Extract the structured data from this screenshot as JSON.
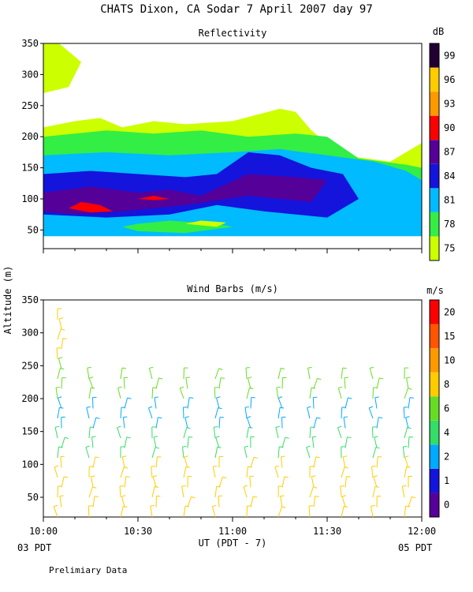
{
  "page": {
    "title": "CHATS Dixon, CA  Sodar   7 April 2007   day  97",
    "footer_note": "Prelimiary Data"
  },
  "chart_data": [
    {
      "type": "heatmap",
      "title": "Reflectivity",
      "ylabel": "",
      "ylim": [
        20,
        350
      ],
      "y_ticks": [
        50,
        100,
        150,
        200,
        250,
        300,
        350
      ],
      "x_ticks": [],
      "colorbar": {
        "unit": "dB",
        "ticks": [
          75,
          78,
          81,
          84,
          87,
          90,
          93,
          96,
          99
        ],
        "colors": [
          "#ccff00",
          "#33ee44",
          "#00bbff",
          "#1414dd",
          "#550099",
          "#ff0000",
          "#ff9900",
          "#ffcc00",
          "#220033"
        ]
      },
      "contour_bands": [
        {
          "level": 75,
          "color": "#ccff00",
          "outline": [
            [
              0,
              350
            ],
            [
              5,
              350
            ],
            [
              12,
              320
            ],
            [
              8,
              280
            ],
            [
              0,
              270
            ],
            [
              -5,
              300
            ]
          ]
        },
        {
          "level": 75,
          "color": "#ccff00",
          "outline": [
            [
              0,
              215
            ],
            [
              10,
              225
            ],
            [
              18,
              230
            ],
            [
              25,
              215
            ],
            [
              35,
              225
            ],
            [
              45,
              220
            ],
            [
              60,
              225
            ],
            [
              75,
              245
            ],
            [
              80,
              240
            ],
            [
              85,
              210
            ],
            [
              95,
              170
            ],
            [
              110,
              160
            ],
            [
              120,
              190
            ],
            [
              120,
              140
            ],
            [
              100,
              130
            ],
            [
              80,
              140
            ],
            [
              0,
              160
            ]
          ]
        },
        {
          "level": 78,
          "color": "#33ee44",
          "outline": [
            [
              0,
              200
            ],
            [
              20,
              210
            ],
            [
              35,
              205
            ],
            [
              50,
              210
            ],
            [
              65,
              200
            ],
            [
              80,
              205
            ],
            [
              90,
              200
            ],
            [
              100,
              165
            ],
            [
              115,
              155
            ],
            [
              120,
              150
            ],
            [
              120,
              130
            ],
            [
              95,
              130
            ],
            [
              80,
              145
            ],
            [
              0,
              165
            ]
          ]
        },
        {
          "level": 81,
          "color": "#00bbff",
          "outline": [
            [
              0,
              170
            ],
            [
              20,
              175
            ],
            [
              40,
              170
            ],
            [
              60,
              175
            ],
            [
              75,
              180
            ],
            [
              90,
              170
            ],
            [
              105,
              160
            ],
            [
              115,
              145
            ],
            [
              120,
              130
            ],
            [
              120,
              40
            ],
            [
              0,
              40
            ]
          ]
        },
        {
          "level": 84,
          "color": "#1414dd",
          "outline": [
            [
              0,
              140
            ],
            [
              15,
              145
            ],
            [
              30,
              140
            ],
            [
              45,
              135
            ],
            [
              55,
              140
            ],
            [
              65,
              175
            ],
            [
              75,
              170
            ],
            [
              85,
              150
            ],
            [
              95,
              140
            ],
            [
              100,
              100
            ],
            [
              90,
              70
            ],
            [
              70,
              80
            ],
            [
              55,
              90
            ],
            [
              40,
              75
            ],
            [
              20,
              70
            ],
            [
              0,
              75
            ]
          ]
        },
        {
          "level": 87,
          "color": "#550099",
          "outline": [
            [
              0,
              110
            ],
            [
              15,
              120
            ],
            [
              30,
              110
            ],
            [
              40,
              115
            ],
            [
              50,
              105
            ],
            [
              65,
              140
            ],
            [
              80,
              135
            ],
            [
              90,
              130
            ],
            [
              85,
              95
            ],
            [
              65,
              105
            ],
            [
              45,
              90
            ],
            [
              25,
              80
            ],
            [
              10,
              75
            ],
            [
              0,
              80
            ]
          ]
        },
        {
          "level": 90,
          "color": "#ff0000",
          "outline": [
            [
              8,
              85
            ],
            [
              12,
              95
            ],
            [
              18,
              90
            ],
            [
              22,
              80
            ],
            [
              15,
              78
            ]
          ]
        },
        {
          "level": 90,
          "color": "#ff0000",
          "outline": [
            [
              30,
              100
            ],
            [
              35,
              105
            ],
            [
              40,
              100
            ],
            [
              35,
              98
            ]
          ]
        },
        {
          "level": 78,
          "color": "#33ee44",
          "outline": [
            [
              25,
              55
            ],
            [
              30,
              60
            ],
            [
              40,
              65
            ],
            [
              55,
              60
            ],
            [
              60,
              55
            ],
            [
              45,
              45
            ],
            [
              30,
              48
            ]
          ]
        },
        {
          "level": 75,
          "color": "#ccff00",
          "outline": [
            [
              45,
              60
            ],
            [
              50,
              65
            ],
            [
              58,
              62
            ],
            [
              55,
              55
            ]
          ]
        }
      ]
    },
    {
      "type": "scatter",
      "title": "Wind Barbs (m/s)",
      "ylabel": "",
      "xlabel": "UT  (PDT - 7)",
      "ylim": [
        20,
        350
      ],
      "xlim": [
        0,
        120
      ],
      "y_ticks": [
        50,
        100,
        150,
        200,
        250,
        300,
        350
      ],
      "x_ticks": [
        "10:00",
        "10:30",
        "11:00",
        "11:30",
        "12:00"
      ],
      "x_sublabels_left": "03 PDT",
      "x_sublabels_right": "05 PDT",
      "shared_ylabel": "Altitude  (m)",
      "colorbar": {
        "unit": "m/s",
        "ticks": [
          0,
          1,
          2,
          4,
          6,
          8,
          10,
          15,
          20
        ],
        "colors": [
          "#550099",
          "#1414dd",
          "#00aaff",
          "#33dd66",
          "#66dd22",
          "#ffcc00",
          "#ff9900",
          "#ff5500",
          "#ff0000"
        ]
      },
      "barb_times_min": [
        5,
        15,
        25,
        35,
        45,
        55,
        65,
        75,
        85,
        95,
        105,
        115
      ],
      "barb_altitudes_m": [
        20,
        35,
        50,
        65,
        80,
        95,
        110,
        125,
        140,
        155,
        170,
        185,
        200,
        215,
        230,
        245,
        260,
        275,
        290,
        305,
        320,
        335
      ],
      "note": ""
    }
  ]
}
